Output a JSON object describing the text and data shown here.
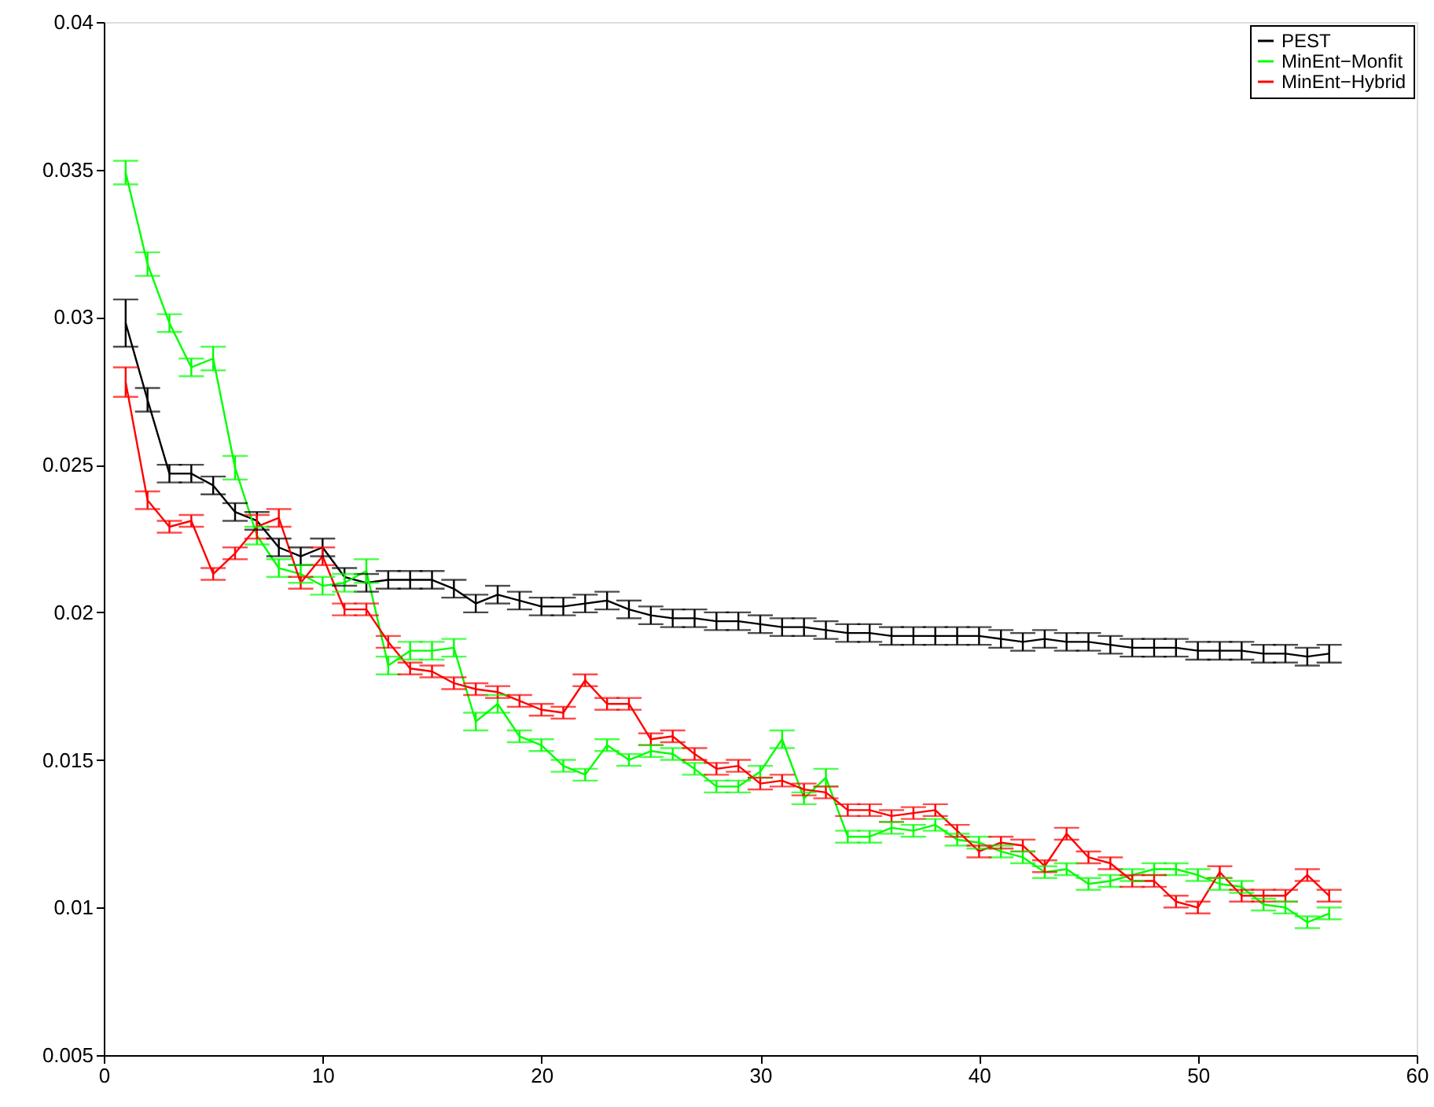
{
  "chart_data": {
    "type": "line",
    "x": [
      1,
      2,
      3,
      4,
      5,
      6,
      7,
      8,
      9,
      10,
      11,
      12,
      13,
      14,
      15,
      16,
      17,
      18,
      19,
      20,
      21,
      22,
      23,
      24,
      25,
      26,
      27,
      28,
      29,
      30,
      31,
      32,
      33,
      34,
      35,
      36,
      37,
      38,
      39,
      40,
      41,
      42,
      43,
      44,
      45,
      46,
      47,
      48,
      49,
      50,
      51,
      52,
      53,
      54,
      55,
      56
    ],
    "series": [
      {
        "name": "PEST",
        "color": "#000000",
        "values": [
          0.0298,
          0.0272,
          0.0247,
          0.0247,
          0.0243,
          0.0234,
          0.0231,
          0.0222,
          0.0219,
          0.0222,
          0.0212,
          0.021,
          0.0211,
          0.0211,
          0.0211,
          0.0208,
          0.0203,
          0.0206,
          0.0204,
          0.0202,
          0.0202,
          0.0203,
          0.0204,
          0.0201,
          0.0199,
          0.0198,
          0.0198,
          0.0197,
          0.0197,
          0.0196,
          0.0195,
          0.0195,
          0.0194,
          0.0193,
          0.0193,
          0.0192,
          0.0192,
          0.0192,
          0.0192,
          0.0192,
          0.0191,
          0.019,
          0.0191,
          0.019,
          0.019,
          0.0189,
          0.0188,
          0.0188,
          0.0188,
          0.0187,
          0.0187,
          0.0187,
          0.0186,
          0.0186,
          0.0185,
          0.0186
        ],
        "errors": [
          0.0008,
          0.0004,
          0.0003,
          0.0003,
          0.0003,
          0.0003,
          0.0003,
          0.0003,
          0.0003,
          0.0003,
          0.0003,
          0.0003,
          0.0003,
          0.0003,
          0.0003,
          0.0003,
          0.0003,
          0.0003,
          0.0003,
          0.0003,
          0.0003,
          0.0003,
          0.0003,
          0.0003,
          0.0003,
          0.0003,
          0.0003,
          0.0003,
          0.0003,
          0.0003,
          0.0003,
          0.0003,
          0.0003,
          0.0003,
          0.0003,
          0.0003,
          0.0003,
          0.0003,
          0.0003,
          0.0003,
          0.0003,
          0.0003,
          0.0003,
          0.0003,
          0.0003,
          0.0003,
          0.0003,
          0.0003,
          0.0003,
          0.0003,
          0.0003,
          0.0003,
          0.0003,
          0.0003,
          0.0003,
          0.0003
        ]
      },
      {
        "name": "MinEnt−Monfit",
        "color": "#00ff00",
        "values": [
          0.0349,
          0.0318,
          0.0298,
          0.0283,
          0.0286,
          0.0249,
          0.0226,
          0.0215,
          0.0213,
          0.0209,
          0.021,
          0.0214,
          0.0182,
          0.0187,
          0.0187,
          0.0188,
          0.0163,
          0.0169,
          0.0158,
          0.0155,
          0.0148,
          0.0145,
          0.0155,
          0.015,
          0.0153,
          0.0152,
          0.0147,
          0.0141,
          0.0141,
          0.0146,
          0.0157,
          0.0137,
          0.0144,
          0.0124,
          0.0124,
          0.0127,
          0.0126,
          0.0128,
          0.0123,
          0.0122,
          0.0119,
          0.0117,
          0.0112,
          0.0113,
          0.0108,
          0.0109,
          0.0111,
          0.0113,
          0.0113,
          0.0111,
          0.0108,
          0.0107,
          0.0101,
          0.01,
          0.0095,
          0.0098
        ],
        "errors": [
          0.0004,
          0.0004,
          0.0003,
          0.0003,
          0.0004,
          0.0004,
          0.0003,
          0.0003,
          0.0003,
          0.0003,
          0.0003,
          0.0004,
          0.0003,
          0.0003,
          0.0003,
          0.0003,
          0.0003,
          0.0003,
          0.0002,
          0.0002,
          0.0002,
          0.0002,
          0.0002,
          0.0002,
          0.0002,
          0.0002,
          0.0002,
          0.0002,
          0.0002,
          0.0002,
          0.0003,
          0.0002,
          0.0003,
          0.0002,
          0.0002,
          0.0002,
          0.0002,
          0.0002,
          0.0002,
          0.0002,
          0.0002,
          0.0002,
          0.0002,
          0.0002,
          0.0002,
          0.0002,
          0.0002,
          0.0002,
          0.0002,
          0.0002,
          0.0002,
          0.0002,
          0.0002,
          0.0002,
          0.0002,
          0.0002
        ]
      },
      {
        "name": "MinEnt−Hybrid",
        "color": "#ff0000",
        "values": [
          0.0278,
          0.0238,
          0.0229,
          0.0231,
          0.0213,
          0.022,
          0.0229,
          0.0232,
          0.021,
          0.0219,
          0.0201,
          0.0201,
          0.019,
          0.0181,
          0.018,
          0.0176,
          0.0174,
          0.0173,
          0.017,
          0.0167,
          0.0166,
          0.0177,
          0.0169,
          0.0169,
          0.0157,
          0.0158,
          0.0152,
          0.0147,
          0.0148,
          0.0142,
          0.0143,
          0.014,
          0.0139,
          0.0133,
          0.0133,
          0.0131,
          0.0132,
          0.0133,
          0.0126,
          0.0119,
          0.0122,
          0.0121,
          0.0114,
          0.0125,
          0.0117,
          0.0115,
          0.0109,
          0.0109,
          0.0102,
          0.01,
          0.0112,
          0.0104,
          0.0104,
          0.0104,
          0.0111,
          0.0104
        ],
        "errors": [
          0.0005,
          0.0003,
          0.0002,
          0.0002,
          0.0002,
          0.0002,
          0.0004,
          0.0003,
          0.0002,
          0.0003,
          0.0002,
          0.0002,
          0.0002,
          0.0002,
          0.0002,
          0.0002,
          0.0002,
          0.0002,
          0.0002,
          0.0002,
          0.0002,
          0.0002,
          0.0002,
          0.0002,
          0.0002,
          0.0002,
          0.0002,
          0.0002,
          0.0002,
          0.0002,
          0.0002,
          0.0002,
          0.0002,
          0.0002,
          0.0002,
          0.0002,
          0.0002,
          0.0002,
          0.0002,
          0.0002,
          0.0002,
          0.0002,
          0.0002,
          0.0002,
          0.0002,
          0.0002,
          0.0002,
          0.0002,
          0.0002,
          0.0002,
          0.0002,
          0.0002,
          0.0002,
          0.0002,
          0.0002,
          0.0002
        ]
      }
    ],
    "xlim": [
      0,
      60
    ],
    "xticks": [
      0,
      10,
      20,
      30,
      40,
      50,
      60
    ],
    "ylim": [
      0.005,
      0.04
    ],
    "yticks": [
      0.005,
      0.01,
      0.015,
      0.02,
      0.025,
      0.03,
      0.035,
      0.04
    ],
    "grid": false,
    "legend": "top right",
    "marker": "none",
    "line_style": "solid"
  }
}
